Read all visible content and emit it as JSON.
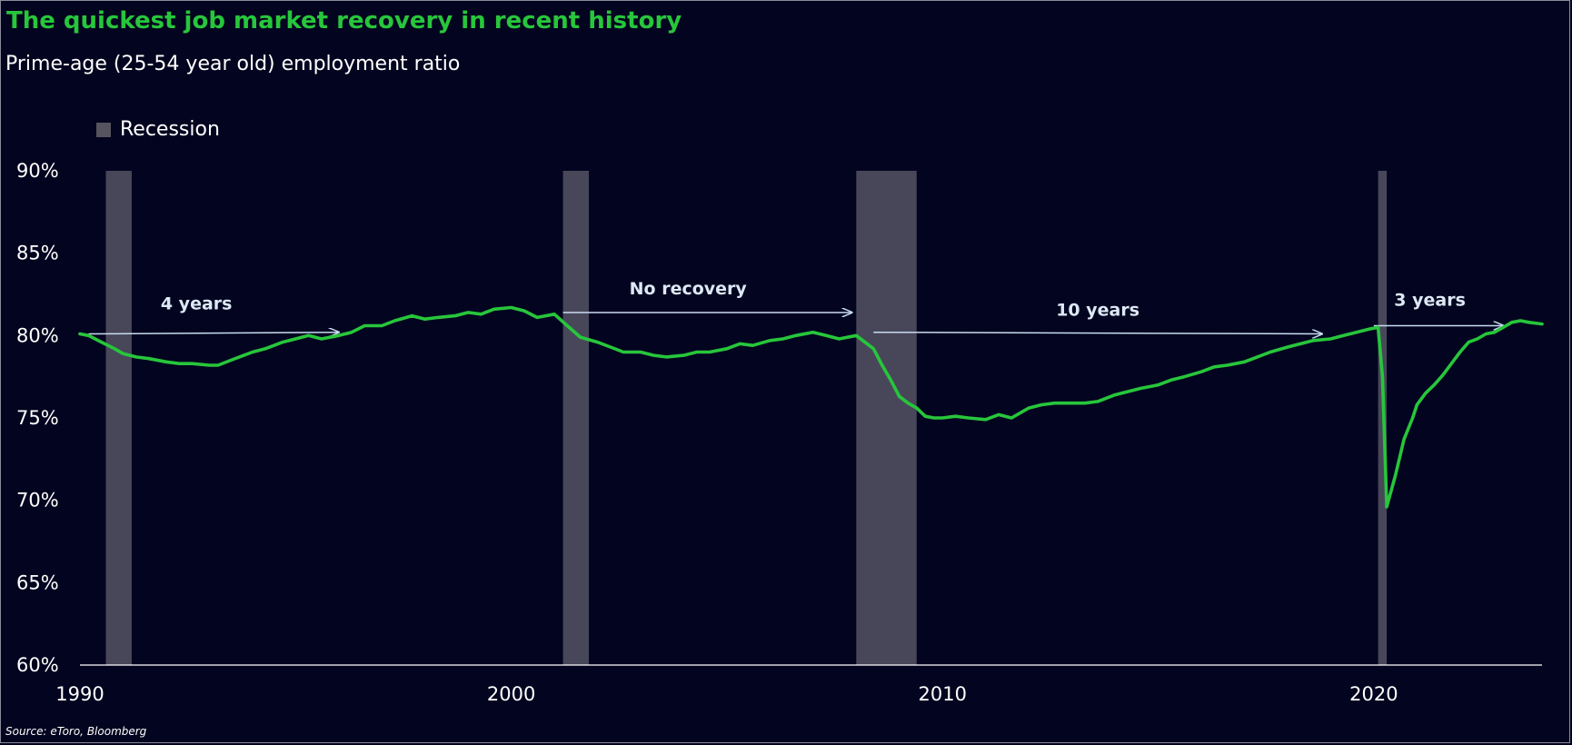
{
  "title": "The quickest job market recovery in recent history",
  "subtitle": "Prime-age (25-54 year old) employment ratio",
  "source": "Source: eToro, Bloomberg",
  "colors": {
    "background": "#03041f",
    "line": "#27c63b",
    "recession": "#48475a",
    "annotation": "#c9dcf2",
    "title": "#27c63b"
  },
  "chart_data": {
    "type": "line",
    "title": "The quickest job market recovery in recent history",
    "subtitle": "Prime-age (25-54 year old) employment ratio",
    "xlim": [
      1990,
      2023.9
    ],
    "ylim": [
      60,
      90
    ],
    "x_ticks": [
      1990,
      2000,
      2010,
      2020
    ],
    "x_tick_labels": [
      "1990",
      "2000",
      "2010",
      "2020"
    ],
    "y_ticks": [
      60,
      65,
      70,
      75,
      80,
      85,
      90
    ],
    "y_tick_labels": [
      "60%",
      "65%",
      "70%",
      "75%",
      "80%",
      "85%",
      "90%"
    ],
    "legend": {
      "label": "Recession",
      "position": "top-left"
    },
    "recessions": [
      {
        "start": 1990.6,
        "end": 1991.2
      },
      {
        "start": 2001.2,
        "end": 2001.8
      },
      {
        "start": 2008.0,
        "end": 2009.4
      },
      {
        "start": 2020.1,
        "end": 2020.3
      }
    ],
    "annotations": [
      {
        "label": "4 years",
        "x_start": 1990.2,
        "x_end": 1996.0,
        "y_start": 80.1,
        "y_end": 80.2,
        "label_x": 1992.7,
        "label_y": 81.6
      },
      {
        "label": "No recovery",
        "x_start": 2001.2,
        "x_end": 2007.9,
        "y_start": 81.4,
        "y_end": 81.4,
        "label_x": 2004.1,
        "label_y": 82.5
      },
      {
        "label": "10 years",
        "x_start": 2008.4,
        "x_end": 2018.8,
        "y_start": 80.2,
        "y_end": 80.1,
        "label_x": 2013.6,
        "label_y": 81.2
      },
      {
        "label": "3 years",
        "x_start": 2020.0,
        "x_end": 2023.0,
        "y_start": 80.6,
        "y_end": 80.6,
        "label_x": 2021.3,
        "label_y": 81.8
      }
    ],
    "series": [
      {
        "color": "#27c63b",
        "x": [
          1990.0,
          1990.2,
          1990.5,
          1990.8,
          1991.0,
          1991.3,
          1991.6,
          1992.0,
          1992.3,
          1992.6,
          1993.0,
          1993.2,
          1993.5,
          1993.8,
          1994.0,
          1994.3,
          1994.7,
          1995.0,
          1995.3,
          1995.6,
          1996.0,
          1996.3,
          1996.6,
          1997.0,
          1997.3,
          1997.7,
          1998.0,
          1998.3,
          1998.7,
          1999.0,
          1999.3,
          1999.6,
          2000.0,
          2000.3,
          2000.6,
          2001.0,
          2001.3,
          2001.6,
          2002.0,
          2002.3,
          2002.6,
          2003.0,
          2003.3,
          2003.6,
          2004.0,
          2004.3,
          2004.6,
          2005.0,
          2005.3,
          2005.6,
          2006.0,
          2006.3,
          2006.6,
          2007.0,
          2007.3,
          2007.6,
          2008.0,
          2008.2,
          2008.4,
          2008.6,
          2008.8,
          2009.0,
          2009.2,
          2009.4,
          2009.6,
          2009.8,
          2010.0,
          2010.3,
          2010.6,
          2011.0,
          2011.3,
          2011.6,
          2012.0,
          2012.3,
          2012.6,
          2013.0,
          2013.3,
          2013.6,
          2014.0,
          2014.3,
          2014.6,
          2015.0,
          2015.3,
          2015.6,
          2016.0,
          2016.3,
          2016.6,
          2017.0,
          2017.3,
          2017.6,
          2018.0,
          2018.3,
          2018.6,
          2019.0,
          2019.3,
          2019.6,
          2019.9,
          2020.1,
          2020.2,
          2020.3,
          2020.5,
          2020.7,
          2020.9,
          2021.0,
          2021.2,
          2021.4,
          2021.6,
          2021.8,
          2022.0,
          2022.2,
          2022.4,
          2022.6,
          2022.8,
          2023.0,
          2023.2,
          2023.4,
          2023.6,
          2023.9
        ],
        "y": [
          80.1,
          80.0,
          79.6,
          79.2,
          78.9,
          78.7,
          78.6,
          78.4,
          78.3,
          78.3,
          78.2,
          78.2,
          78.5,
          78.8,
          79.0,
          79.2,
          79.6,
          79.8,
          80.0,
          79.8,
          80.0,
          80.2,
          80.6,
          80.6,
          80.9,
          81.2,
          81.0,
          81.1,
          81.2,
          81.4,
          81.3,
          81.6,
          81.7,
          81.5,
          81.1,
          81.3,
          80.6,
          79.9,
          79.6,
          79.3,
          79.0,
          79.0,
          78.8,
          78.7,
          78.8,
          79.0,
          79.0,
          79.2,
          79.5,
          79.4,
          79.7,
          79.8,
          80.0,
          80.2,
          80.0,
          79.8,
          80.0,
          79.6,
          79.2,
          78.2,
          77.3,
          76.3,
          75.9,
          75.6,
          75.1,
          75.0,
          75.0,
          75.1,
          75.0,
          74.9,
          75.2,
          75.0,
          75.6,
          75.8,
          75.9,
          75.9,
          75.9,
          76.0,
          76.4,
          76.6,
          76.8,
          77.0,
          77.3,
          77.5,
          77.8,
          78.1,
          78.2,
          78.4,
          78.7,
          79.0,
          79.3,
          79.5,
          79.7,
          79.8,
          80.0,
          80.2,
          80.4,
          80.5,
          77.5,
          69.6,
          71.5,
          73.7,
          75.0,
          75.8,
          76.5,
          77.0,
          77.6,
          78.3,
          79.0,
          79.6,
          79.8,
          80.1,
          80.2,
          80.5,
          80.8,
          80.9,
          80.8,
          80.7
        ]
      }
    ]
  }
}
